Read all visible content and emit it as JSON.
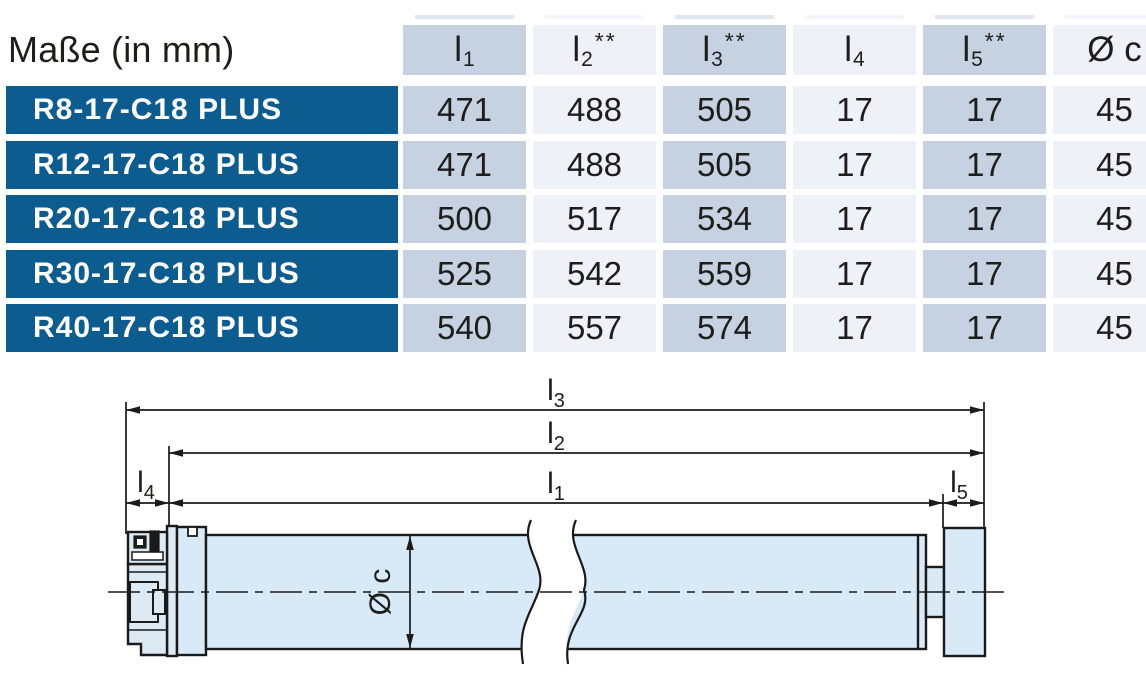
{
  "colors": {
    "brand_blue": "#0c5c90",
    "col_dark": "#c6d1e1",
    "col_light": "#eef1f8",
    "text_dark": "#1d1d1b",
    "tube_fill": "#d8eaf8",
    "head_fill": "#dde9f3",
    "line_dark": "#1a1a1a"
  },
  "table": {
    "corner_label": "Maße (in mm)",
    "columns": [
      {
        "base": "l",
        "sub": "1",
        "sup": ""
      },
      {
        "base": "l",
        "sub": "2",
        "sup": "**"
      },
      {
        "base": "l",
        "sub": "3",
        "sup": "**"
      },
      {
        "base": "l",
        "sub": "4",
        "sup": ""
      },
      {
        "base": "l",
        "sub": "5",
        "sup": "**"
      },
      {
        "base": "Ø c",
        "sub": "",
        "sup": ""
      }
    ],
    "rows": [
      {
        "model": "R8-17-C18 PLUS",
        "values": [
          "471",
          "488",
          "505",
          "17",
          "17",
          "45"
        ]
      },
      {
        "model": "R12-17-C18 PLUS",
        "values": [
          "471",
          "488",
          "505",
          "17",
          "17",
          "45"
        ]
      },
      {
        "model": "R20-17-C18 PLUS",
        "values": [
          "500",
          "517",
          "534",
          "17",
          "17",
          "45"
        ]
      },
      {
        "model": "R30-17-C18 PLUS",
        "values": [
          "525",
          "542",
          "559",
          "17",
          "17",
          "45"
        ]
      },
      {
        "model": "R40-17-C18 PLUS",
        "values": [
          "540",
          "557",
          "574",
          "17",
          "17",
          "45"
        ]
      }
    ]
  },
  "diagram": {
    "dims": [
      {
        "base": "l",
        "sub": "3"
      },
      {
        "base": "l",
        "sub": "2"
      },
      {
        "base": "l",
        "sub": "1"
      },
      {
        "base": "l",
        "sub": "4"
      },
      {
        "base": "l",
        "sub": "5"
      }
    ],
    "diameter_label": "Ø c"
  }
}
